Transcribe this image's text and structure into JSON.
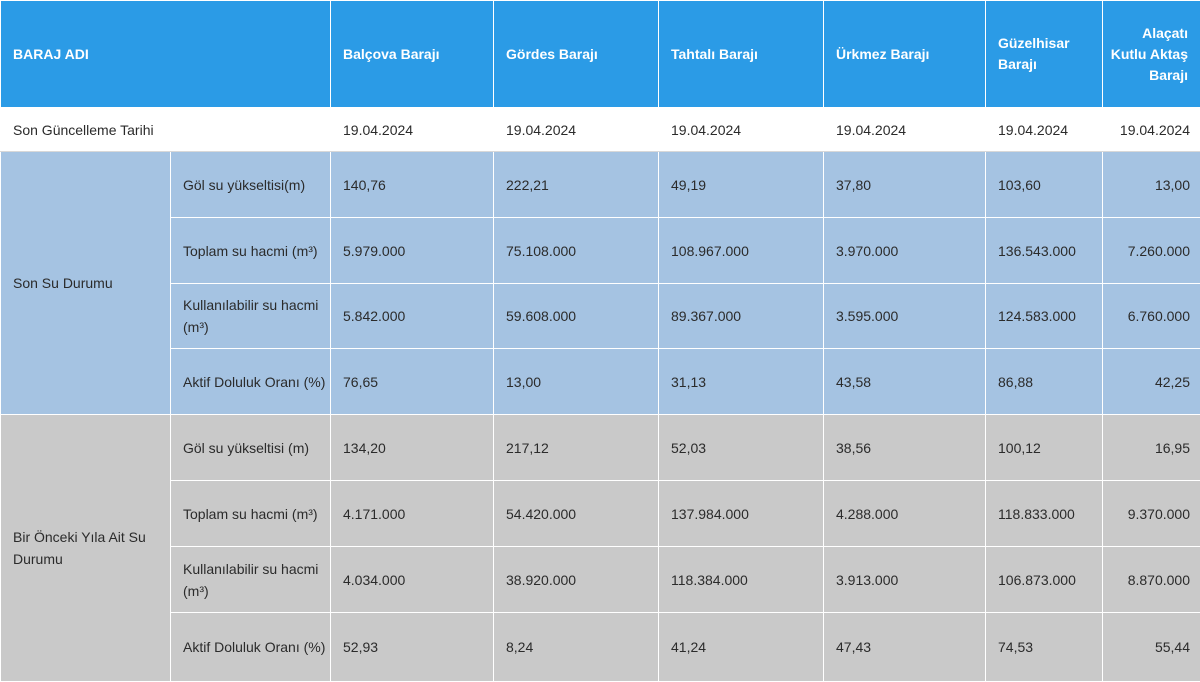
{
  "table": {
    "header": {
      "label": "BARAJ ADI",
      "dams": [
        "Balçova Barajı",
        "Gördes Barajı",
        "Tahtalı Barajı",
        "Ürkmez Barajı",
        "Güzelhisar Barajı",
        "Alaçatı Kutlu Aktaş Barajı"
      ]
    },
    "date_row": {
      "label": "Son Güncelleme Tarihi",
      "values": [
        "19.04.2024",
        "19.04.2024",
        "19.04.2024",
        "19.04.2024",
        "19.04.2024",
        "19.04.2024"
      ]
    },
    "groups": [
      {
        "label": "Son Su Durumu",
        "rows": [
          {
            "label": "Göl su yükseltisi(m)",
            "values": [
              "140,76",
              "222,21",
              "49,19",
              "37,80",
              "103,60",
              "13,00"
            ]
          },
          {
            "label": "Toplam su hacmi (m³)",
            "values": [
              "5.979.000",
              "75.108.000",
              "108.967.000",
              "3.970.000",
              "136.543.000",
              "7.260.000"
            ]
          },
          {
            "label": "Kullanılabilir su hacmi (m³)",
            "values": [
              "5.842.000",
              "59.608.000",
              "89.367.000",
              "3.595.000",
              "124.583.000",
              "6.760.000"
            ]
          },
          {
            "label": "Aktif Doluluk Oranı (%)",
            "values": [
              "76,65",
              "13,00",
              "31,13",
              "43,58",
              "86,88",
              "42,25"
            ]
          }
        ]
      },
      {
        "label": "Bir Önceki Yıla Ait Su Durumu",
        "rows": [
          {
            "label": "Göl su yükseltisi (m)",
            "values": [
              "134,20",
              "217,12",
              "52,03",
              "38,56",
              "100,12",
              "16,95"
            ]
          },
          {
            "label": "Toplam su hacmi (m³)",
            "values": [
              "4.171.000",
              "54.420.000",
              "137.984.000",
              "4.288.000",
              "118.833.000",
              "9.370.000"
            ]
          },
          {
            "label": "Kullanılabilir su hacmi (m³)",
            "values": [
              "4.034.000",
              "38.920.000",
              "118.384.000",
              "3.913.000",
              "106.873.000",
              "8.870.000"
            ]
          },
          {
            "label": "Aktif Doluluk Oranı (%)",
            "values": [
              "52,93",
              "8,24",
              "41,24",
              "47,43",
              "74,53",
              "55,44"
            ]
          }
        ]
      }
    ]
  }
}
